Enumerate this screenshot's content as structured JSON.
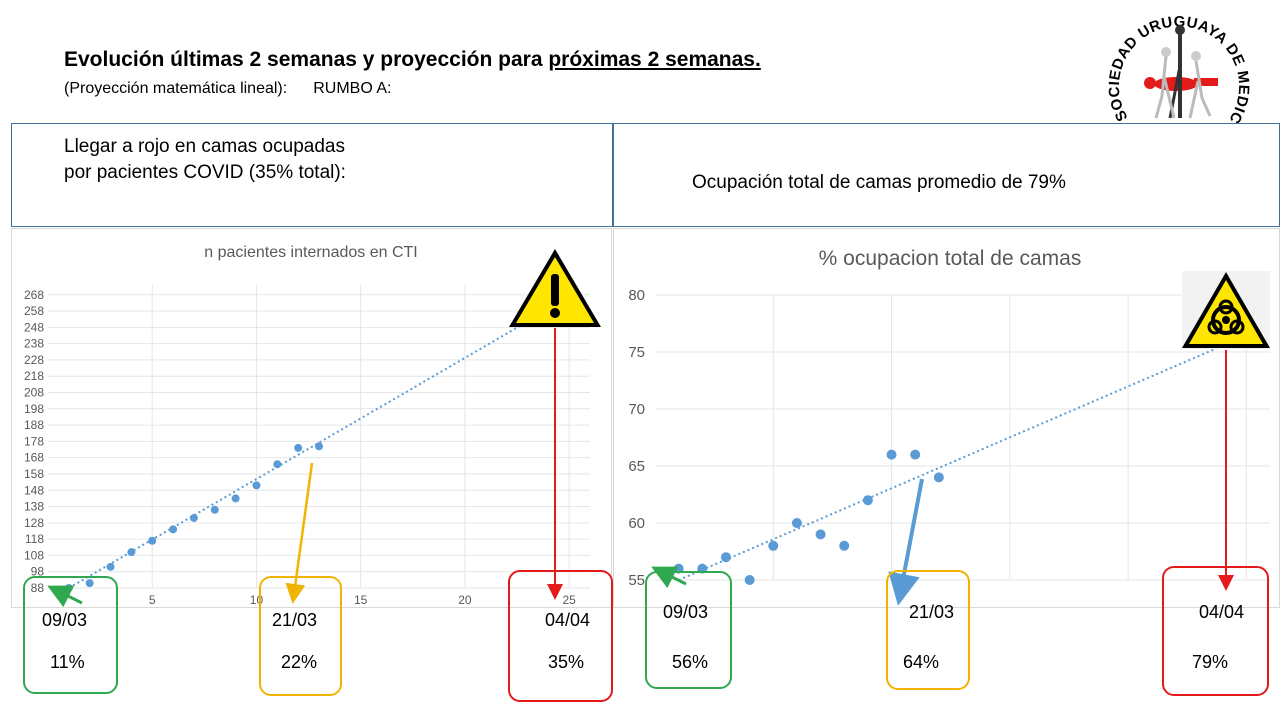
{
  "header": {
    "title_main": "Evolución últimas 2 semanas y proyección para ",
    "title_underlined": "próximas 2 semanas.",
    "subtitle_left": "(Proyección matemática lineal):",
    "subtitle_right": "RUMBO A:"
  },
  "logo": {
    "text": "SOCIEDAD URUGUAYA DE MEDICINA INTENSIVA"
  },
  "left_box": {
    "line1": "Llegar a rojo en camas ocupadas",
    "line2": "por pacientes COVID (35% total):"
  },
  "right_box": {
    "text": "Ocupación total de camas promedio de 79%"
  },
  "callouts_left": [
    {
      "date": "09/03",
      "pct": "11%",
      "color": "#2fa84f"
    },
    {
      "date": "21/03",
      "pct": "22%",
      "color": "#f0b400"
    },
    {
      "date": "04/04",
      "pct": "35%",
      "color": "#e31b1b"
    }
  ],
  "callouts_right": [
    {
      "date": "09/03",
      "pct": "56%",
      "color": "#2fa84f"
    },
    {
      "date": "21/03",
      "pct": "64%",
      "color": "#f0b400"
    },
    {
      "date": "04/04",
      "pct": "79%",
      "color": "#e31b1b"
    }
  ],
  "icons": {
    "warning": "warning-triangle-icon",
    "biohazard": "biohazard-icon"
  },
  "chart_data": [
    {
      "type": "scatter",
      "title": "n pacientes internados en CTI",
      "xlim": [
        0,
        26
      ],
      "ylim": [
        88,
        274
      ],
      "y_ticks": [
        88,
        98,
        108,
        118,
        128,
        138,
        148,
        158,
        168,
        178,
        188,
        198,
        208,
        218,
        228,
        238,
        248,
        258,
        268
      ],
      "x_ticks": [
        5,
        10,
        15,
        20,
        25
      ],
      "x": [
        1,
        2,
        3,
        4,
        5,
        6,
        7,
        8,
        9,
        10,
        11,
        12,
        13
      ],
      "y": [
        88,
        91,
        101,
        110,
        117,
        124,
        131,
        136,
        143,
        151,
        164,
        174,
        175
      ],
      "trendline": {
        "kind": "linear",
        "x_from": 1,
        "x_to": 24,
        "y_from": 88,
        "y_to": 259
      },
      "marker_color": "#5b9bd5",
      "grid": true
    },
    {
      "type": "scatter",
      "title": "% ocupacion total de camas",
      "xlim": [
        0,
        26
      ],
      "ylim": [
        55,
        80
      ],
      "y_ticks": [
        55,
        60,
        65,
        70,
        75,
        80
      ],
      "x": [
        1,
        2,
        3,
        4,
        5,
        6,
        7,
        8,
        9,
        10,
        11,
        12
      ],
      "y": [
        56,
        56,
        57,
        55,
        58,
        60,
        59,
        58,
        62,
        66,
        66,
        64
      ],
      "trendline": {
        "kind": "linear",
        "x_from": 1,
        "x_to": 24.5,
        "y_from": 55,
        "y_to": 76
      },
      "marker_color": "#5b9bd5",
      "grid": true
    }
  ]
}
